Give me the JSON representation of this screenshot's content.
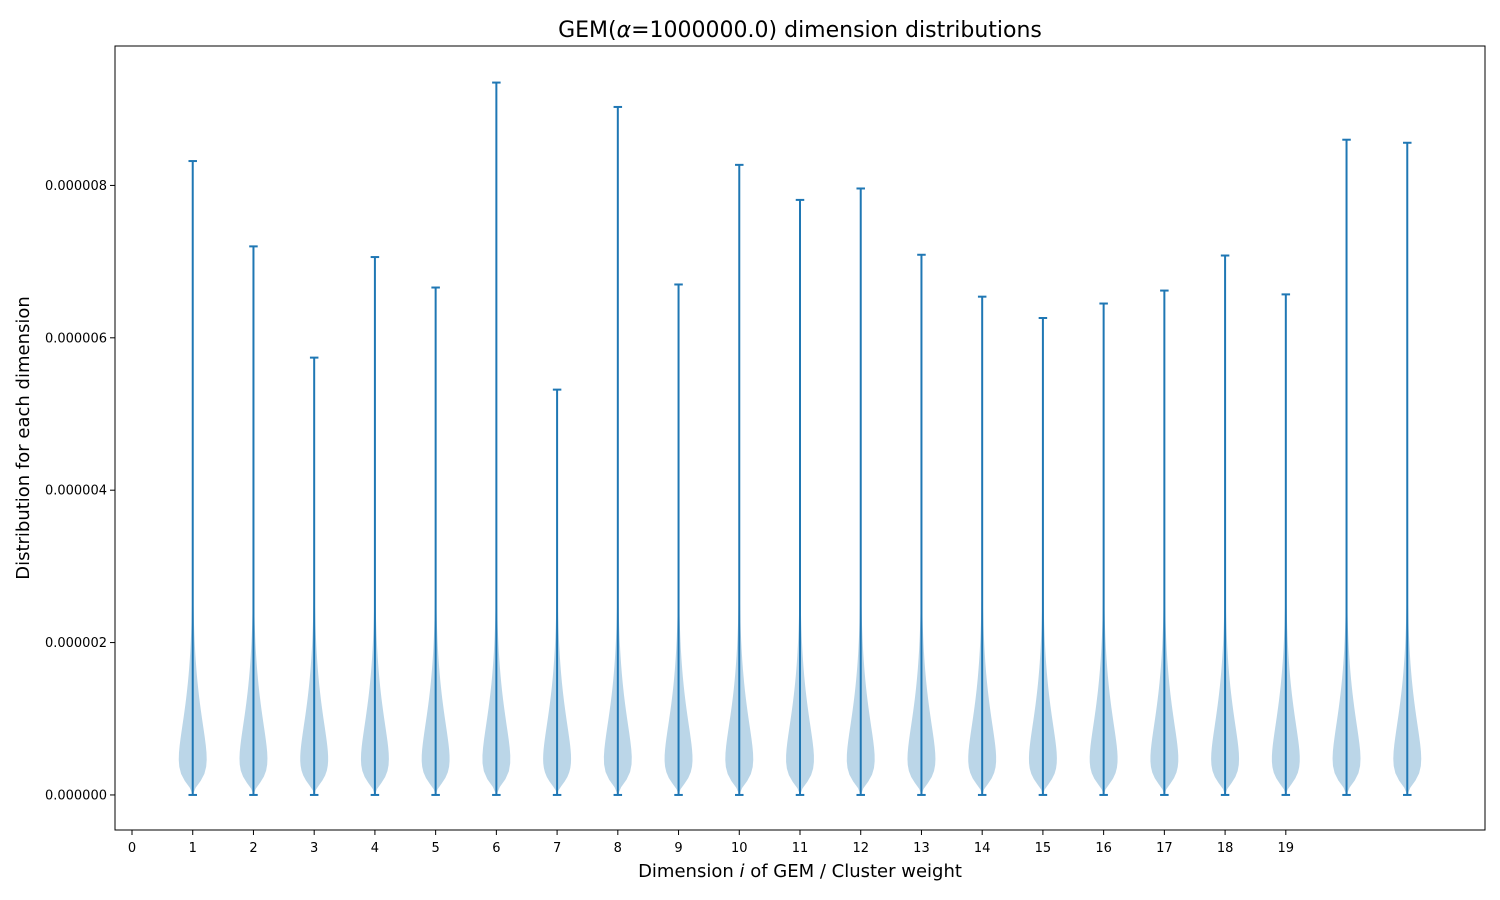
{
  "chart_data": {
    "type": "violin",
    "title_prefix": "GEM(",
    "title_symbol": "α",
    "title_suffix": "=1000000.0) dimension distributions",
    "xlabel_prefix": "Dimension ",
    "xlabel_symbol": "i",
    "xlabel_suffix": " of GEM / Cluster weight",
    "ylabel": "Distribution for each dimension",
    "ylim": [
      -4.6e-07,
      9.83e-06
    ],
    "yticks": [
      0.0,
      2e-06,
      4e-06,
      6e-06,
      8e-06
    ],
    "ytick_labels": [
      "0.000000",
      "0.000002",
      "0.000004",
      "0.000006",
      "0.000008"
    ],
    "xlim": [
      -0.28,
      22.28
    ],
    "xticks": [
      0,
      1,
      2,
      3,
      4,
      5,
      6,
      7,
      8,
      9,
      10,
      11,
      12,
      13,
      14,
      15,
      16,
      17,
      18,
      19
    ],
    "xtick_labels": [
      "0",
      "1",
      "2",
      "3",
      "4",
      "5",
      "6",
      "7",
      "8",
      "9",
      "10",
      "11",
      "12",
      "13",
      "14",
      "15",
      "16",
      "17",
      "18",
      "19"
    ],
    "positions": [
      1,
      2,
      3,
      4,
      5,
      6,
      7,
      8,
      9,
      10,
      11,
      12,
      13,
      14,
      15,
      16,
      17,
      18,
      19,
      20,
      21
    ],
    "min": [
      0,
      0,
      0,
      0,
      0,
      0,
      0,
      0,
      0,
      0,
      0,
      0,
      0,
      0,
      0,
      0,
      0,
      0,
      0,
      0,
      0
    ],
    "max": [
      8.32e-06,
      7.2e-06,
      5.74e-06,
      7.06e-06,
      6.66e-06,
      9.35e-06,
      5.32e-06,
      9.03e-06,
      6.7e-06,
      8.27e-06,
      7.81e-06,
      7.96e-06,
      7.09e-06,
      6.54e-06,
      6.26e-06,
      6.45e-06,
      6.62e-06,
      7.08e-06,
      6.57e-06,
      8.6e-06,
      8.56e-06
    ],
    "grid": false,
    "color": "#1f77b4"
  }
}
